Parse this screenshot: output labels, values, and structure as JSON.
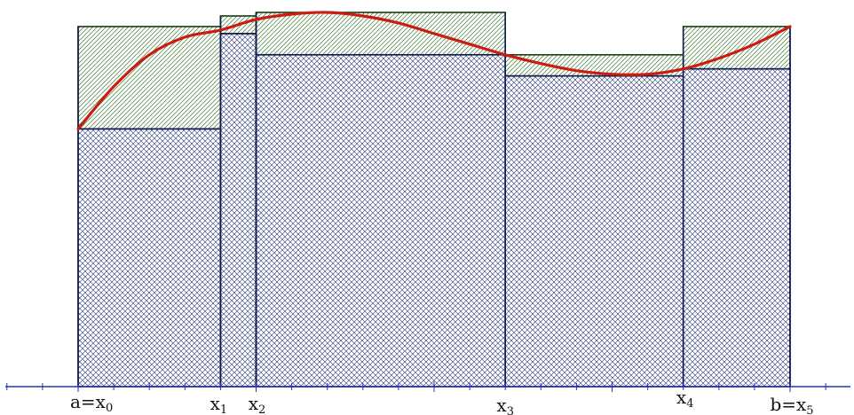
{
  "chart_data": {
    "type": "area",
    "description_kind": "riemann-sum-upper-lower",
    "x_axis_labels": [
      {
        "base": "a=x",
        "sub": "0"
      },
      {
        "base": "x",
        "sub": "1"
      },
      {
        "base": "x",
        "sub": "2"
      },
      {
        "base": "x",
        "sub": "3"
      },
      {
        "base": "x",
        "sub": "4"
      },
      {
        "base": "b=x",
        "sub": "5"
      }
    ],
    "partition_points": [
      0,
      4,
      5,
      12,
      17,
      20
    ],
    "lower_sums": [
      7.3,
      10.0,
      9.4,
      8.8,
      9.0
    ],
    "upper_sums": [
      10.2,
      10.5,
      10.6,
      9.4,
      10.2
    ],
    "curve_samples": [
      [
        0,
        7.3
      ],
      [
        1,
        8.5
      ],
      [
        2,
        9.4
      ],
      [
        3,
        9.9
      ],
      [
        4,
        10.1
      ],
      [
        5,
        10.4
      ],
      [
        6,
        10.55
      ],
      [
        7,
        10.6
      ],
      [
        8,
        10.5
      ],
      [
        9,
        10.3
      ],
      [
        10,
        10.0
      ],
      [
        11,
        9.7
      ],
      [
        12,
        9.4
      ],
      [
        13,
        9.15
      ],
      [
        14,
        8.95
      ],
      [
        15,
        8.85
      ],
      [
        16,
        8.85
      ],
      [
        17,
        9.0
      ],
      [
        18,
        9.3
      ],
      [
        19,
        9.7
      ],
      [
        20,
        10.2
      ]
    ],
    "xlim": [
      -2,
      21.2
    ],
    "ylim": [
      0,
      10.6
    ]
  },
  "colors": {
    "axis": "#2233bb",
    "curve": "#cc1c10",
    "lower_stroke": "#0f1a55",
    "lower_hatch": "#2a3a7a",
    "upper_stroke": "#1e3a12",
    "upper_hatch": "#3f7a32",
    "background": "#ffffff"
  }
}
